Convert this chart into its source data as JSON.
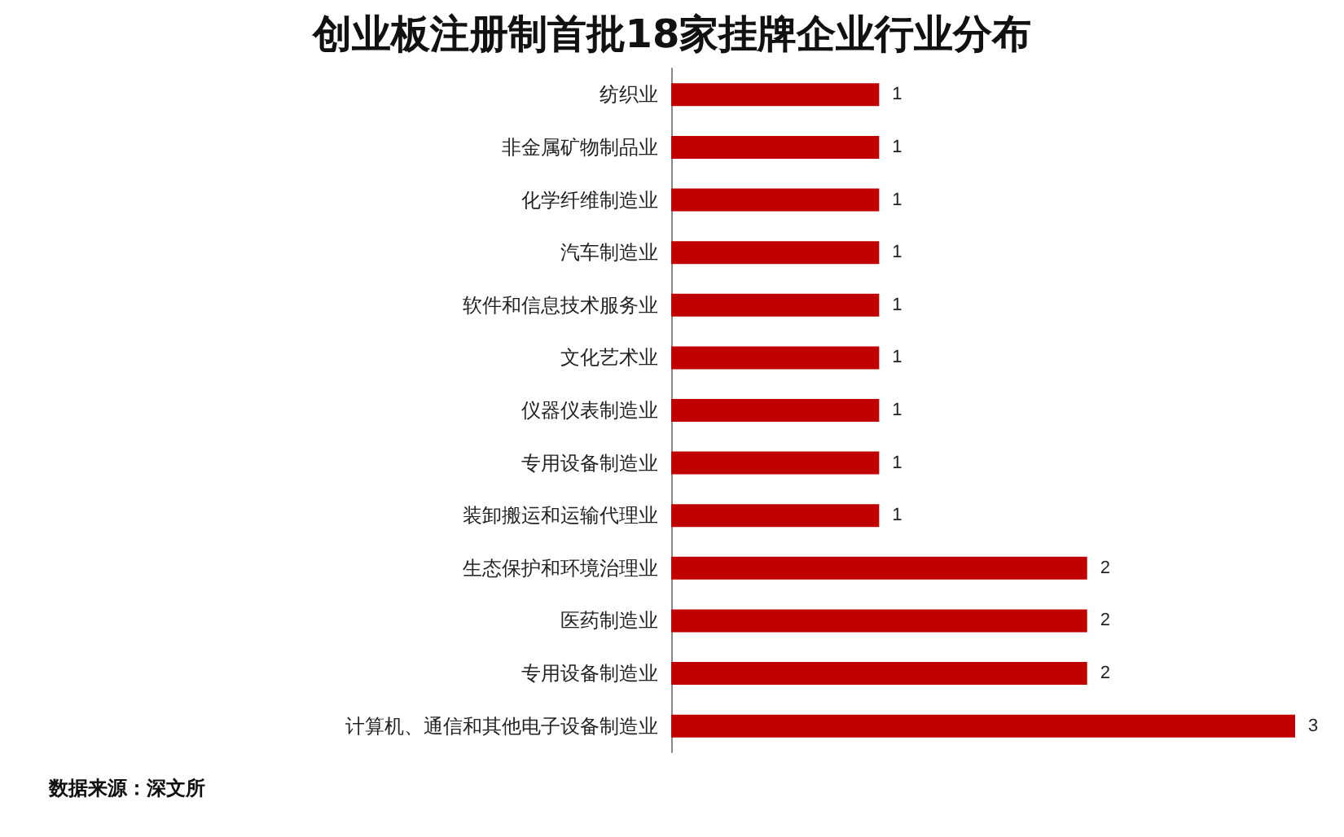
{
  "chart_data": {
    "type": "bar",
    "orientation": "horizontal",
    "title": "创业板注册制首批18家挂牌企业行业分布",
    "categories": [
      "纺织业",
      "非金属矿物制品业",
      "化学纤维制造业",
      "汽车制造业",
      "软件和信息技术服务业",
      "文化艺术业",
      "仪器仪表制造业",
      "专用设备制造业",
      "装卸搬运和运输代理业",
      "生态保护和环境治理业",
      "医药制造业",
      "专用设备制造业",
      "计算机、通信和其他电子设备制造业"
    ],
    "values": [
      1,
      1,
      1,
      1,
      1,
      1,
      1,
      1,
      1,
      2,
      2,
      2,
      3
    ],
    "color": "#c00000",
    "data_labels": true,
    "annotations": [
      "数据来源：深文所"
    ]
  }
}
